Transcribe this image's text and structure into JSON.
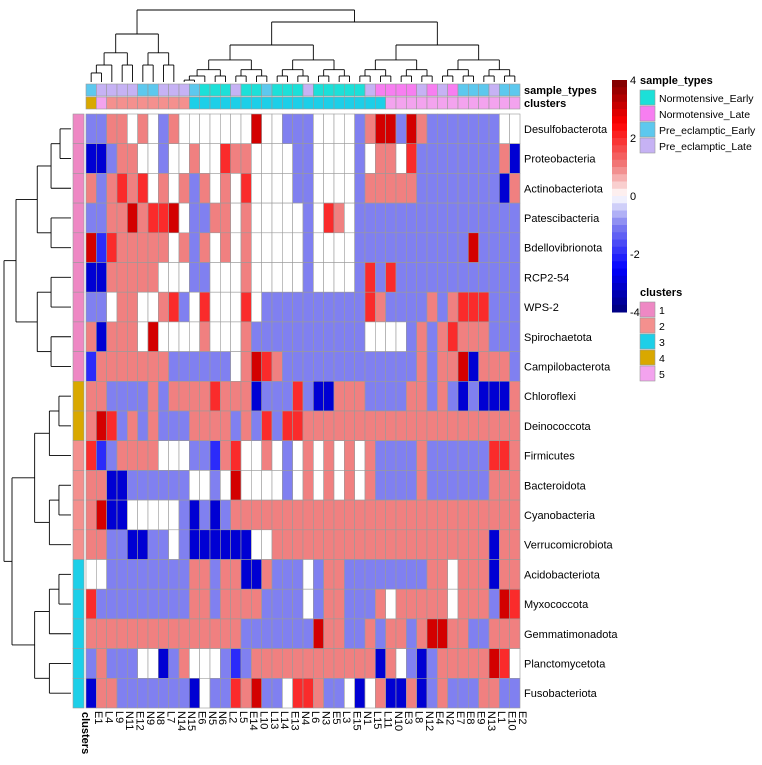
{
  "chart_data": {
    "type": "heatmap",
    "color_scale": {
      "ticks": [
        -4,
        -2,
        0,
        2,
        4
      ],
      "range": [
        -4,
        4
      ],
      "stops": [
        {
          "value": -4,
          "color": "#00007a"
        },
        {
          "value": -2.5,
          "color": "#0000ff"
        },
        {
          "value": -1,
          "color": "#8080f0"
        },
        {
          "value": 0,
          "color": "#ffffff"
        },
        {
          "value": 1,
          "color": "#f08080"
        },
        {
          "value": 2.5,
          "color": "#ff0000"
        },
        {
          "value": 4,
          "color": "#7a0000"
        }
      ]
    },
    "rows": [
      "Desulfobacterota",
      "Proteobacteria",
      "Actinobacteriota",
      "Patescibacteria",
      "Bdellovibrionota",
      "RCP2-54",
      "WPS-2",
      "Spirochaetota",
      "Campilobacterota",
      "Chloroflexi",
      "Deinococcota",
      "Firmicutes",
      "Bacteroidota",
      "Cyanobacteria",
      "Verrucomicrobiota",
      "Acidobacteriota",
      "Myxococcota",
      "Gemmatimonadota",
      "Planctomycetota",
      "Fusobacteriota"
    ],
    "row_clusters": [
      1,
      1,
      1,
      1,
      1,
      1,
      1,
      1,
      1,
      4,
      4,
      2,
      2,
      2,
      2,
      3,
      3,
      3,
      3,
      3
    ],
    "columns": [
      "E1",
      "L4",
      "L9",
      "N11",
      "E12",
      "N9",
      "N8",
      "L7",
      "N14",
      "N15",
      "E6",
      "N5",
      "N6",
      "L2",
      "L5",
      "E14",
      "L10",
      "L13",
      "L14",
      "E13",
      "N4",
      "L6",
      "N3",
      "E5",
      "L3",
      "E15",
      "N1",
      "L15",
      "L11",
      "N10",
      "E3",
      "L8",
      "N12",
      "E4",
      "N2",
      "E7",
      "E8",
      "E9",
      "N13",
      "L1",
      "E10",
      "E2"
    ],
    "column_sample_types": [
      3,
      4,
      4,
      4,
      4,
      3,
      3,
      4,
      4,
      4,
      3,
      1,
      1,
      1,
      4,
      1,
      1,
      3,
      1,
      1,
      1,
      4,
      1,
      1,
      1,
      1,
      1,
      4,
      2,
      2,
      2,
      2,
      4,
      2,
      4,
      2,
      3,
      3,
      3,
      4,
      3,
      3
    ],
    "column_clusters": [
      4,
      5,
      2,
      2,
      2,
      2,
      2,
      2,
      2,
      2,
      3,
      3,
      3,
      3,
      3,
      3,
      3,
      3,
      3,
      3,
      3,
      3,
      3,
      3,
      3,
      3,
      3,
      3,
      3,
      5,
      5,
      5,
      5,
      5,
      5,
      5,
      5,
      5,
      5,
      5,
      5,
      5
    ],
    "values": [
      [
        -1,
        -1,
        1,
        1,
        0,
        1,
        0,
        -1,
        1,
        0,
        0,
        0,
        0,
        0,
        0,
        0,
        3,
        0,
        0,
        -1,
        -1,
        -1,
        0,
        0,
        0,
        0,
        -1,
        1,
        3,
        3,
        -1,
        3,
        1,
        -1,
        -1,
        -1,
        -1,
        -1,
        -1,
        -1,
        0,
        0
      ],
      [
        -3,
        -3,
        -1,
        1,
        1,
        0,
        0,
        -1,
        0,
        0,
        1,
        0,
        0,
        2,
        1,
        1,
        0,
        0,
        0,
        0,
        -1,
        -1,
        0,
        0,
        0,
        0,
        -1,
        0,
        1,
        1,
        0,
        2,
        -1,
        -1,
        -1,
        -1,
        -1,
        -1,
        -1,
        -1,
        1,
        -3
      ],
      [
        1,
        -1,
        1,
        2,
        1,
        2,
        0,
        1,
        0,
        1,
        -1,
        1,
        0,
        1,
        0,
        2,
        0,
        0,
        0,
        0,
        -1,
        -1,
        0,
        0,
        0,
        0,
        -1,
        1,
        1,
        1,
        1,
        1,
        -1,
        -1,
        -1,
        -1,
        -1,
        -1,
        -1,
        -1,
        -3,
        1
      ],
      [
        -1,
        -1,
        1,
        1,
        3,
        1,
        2,
        2,
        3,
        0,
        -1,
        -1,
        1,
        1,
        0,
        1,
        0,
        0,
        0,
        0,
        0,
        -1,
        0,
        2,
        1,
        0,
        -1,
        -1,
        -1,
        -1,
        -1,
        -1,
        -1,
        -1,
        -1,
        -1,
        -1,
        -1,
        -1,
        -1,
        -1,
        -1
      ],
      [
        3,
        -2,
        2,
        1,
        1,
        1,
        1,
        1,
        0,
        1,
        -1,
        1,
        0,
        1,
        0,
        1,
        0,
        0,
        0,
        0,
        0,
        -1,
        0,
        0,
        0,
        0,
        -1,
        -1,
        -1,
        -1,
        -1,
        -1,
        -1,
        -1,
        -1,
        -1,
        -1,
        3,
        -1,
        -1,
        -1,
        -1
      ],
      [
        -3,
        -3,
        1,
        1,
        1,
        1,
        1,
        0,
        0,
        0,
        -1,
        -1,
        0,
        0,
        0,
        1,
        0,
        0,
        0,
        0,
        0,
        -1,
        0,
        0,
        0,
        0,
        -1,
        2,
        -1,
        2,
        -1,
        -1,
        -1,
        -1,
        -1,
        -1,
        -1,
        -1,
        -1,
        -1,
        -1,
        -1
      ],
      [
        -1,
        -1,
        0,
        1,
        1,
        0,
        0,
        1,
        2,
        -1,
        0,
        2,
        0,
        0,
        0,
        2,
        0,
        -1,
        -1,
        -1,
        -1,
        -1,
        -1,
        -1,
        -1,
        -1,
        -1,
        2,
        1,
        -1,
        -1,
        -1,
        -1,
        1,
        -1,
        1,
        2,
        2,
        2,
        -1,
        -1,
        -1
      ],
      [
        1,
        -3,
        1,
        1,
        1,
        0,
        3,
        0,
        0,
        0,
        0,
        1,
        0,
        0,
        0,
        1,
        -1,
        -1,
        -1,
        -1,
        -1,
        -1,
        -1,
        -1,
        -1,
        -1,
        -1,
        0,
        0,
        0,
        0,
        -1,
        1,
        -1,
        1,
        2,
        1,
        1,
        1,
        -1,
        -1,
        -1
      ],
      [
        -2,
        1,
        1,
        1,
        1,
        1,
        1,
        1,
        -1,
        -1,
        -1,
        -1,
        -1,
        -1,
        0,
        1,
        3,
        2,
        1,
        -1,
        -1,
        -1,
        -1,
        -1,
        -1,
        -1,
        -1,
        -1,
        -1,
        -1,
        -1,
        -1,
        1,
        -1,
        1,
        1,
        3,
        -3,
        1,
        1,
        1,
        -1
      ],
      [
        1,
        1,
        -1,
        -1,
        -1,
        -1,
        1,
        -1,
        1,
        1,
        1,
        1,
        2,
        1,
        1,
        1,
        -3,
        -1,
        -1,
        -1,
        2,
        -1,
        -3,
        -3,
        1,
        1,
        1,
        -1,
        -1,
        -1,
        -1,
        1,
        1,
        -1,
        1,
        -1,
        -3,
        -1,
        -3,
        -3,
        -3,
        1
      ],
      [
        1,
        3,
        2,
        -1,
        1,
        -1,
        1,
        -1,
        -1,
        -1,
        1,
        1,
        1,
        1,
        -1,
        1,
        -1,
        2,
        -1,
        2,
        2,
        1,
        1,
        1,
        1,
        1,
        1,
        1,
        1,
        1,
        1,
        1,
        1,
        1,
        1,
        1,
        1,
        1,
        1,
        1,
        1,
        1
      ],
      [
        2,
        -2,
        -1,
        1,
        1,
        1,
        1,
        0,
        0,
        0,
        -1,
        -1,
        -2,
        1,
        2,
        0,
        0,
        1,
        0,
        -1,
        0,
        1,
        0,
        1,
        0,
        1,
        0,
        1,
        -1,
        -1,
        -1,
        -1,
        1,
        -1,
        -1,
        -1,
        -1,
        -1,
        -1,
        2,
        2,
        1
      ],
      [
        1,
        1,
        -3,
        -3,
        -1,
        -1,
        -1,
        -1,
        -1,
        -1,
        0,
        0,
        -1,
        0,
        3,
        0,
        0,
        0,
        0,
        -1,
        0,
        1,
        0,
        1,
        0,
        1,
        0,
        1,
        -1,
        -1,
        -1,
        -1,
        1,
        -1,
        -1,
        -1,
        -1,
        -1,
        -1,
        1,
        1,
        1
      ],
      [
        1,
        3,
        -3,
        -3,
        0,
        0,
        0,
        0,
        0,
        -1,
        -3,
        -1,
        -3,
        -1,
        1,
        1,
        1,
        1,
        1,
        1,
        1,
        1,
        1,
        1,
        1,
        1,
        1,
        1,
        1,
        1,
        1,
        1,
        1,
        1,
        1,
        1,
        1,
        1,
        1,
        1,
        1,
        1
      ],
      [
        1,
        1,
        -1,
        -1,
        -3,
        -3,
        -1,
        -1,
        0,
        -1,
        -3,
        -3,
        -3,
        -3,
        -3,
        -3,
        0,
        0,
        1,
        1,
        1,
        1,
        1,
        1,
        1,
        1,
        1,
        1,
        1,
        1,
        1,
        1,
        1,
        1,
        1,
        1,
        1,
        1,
        1,
        -3,
        1,
        1
      ],
      [
        0,
        0,
        -1,
        -1,
        -1,
        -1,
        -1,
        -1,
        -1,
        -1,
        1,
        1,
        -1,
        1,
        1,
        -3,
        -3,
        1,
        -1,
        -1,
        -1,
        0,
        -1,
        1,
        1,
        -1,
        -1,
        -1,
        -1,
        -1,
        -1,
        -1,
        -1,
        1,
        1,
        0,
        1,
        1,
        1,
        -3,
        1,
        1
      ],
      [
        2,
        -1,
        -1,
        -1,
        -1,
        -1,
        -1,
        -1,
        -1,
        -1,
        1,
        1,
        -1,
        1,
        1,
        1,
        1,
        -1,
        -1,
        -1,
        -1,
        0,
        -1,
        1,
        1,
        -1,
        -1,
        -1,
        1,
        0,
        1,
        1,
        1,
        1,
        1,
        0,
        1,
        1,
        1,
        -1,
        3,
        2
      ],
      [
        1,
        1,
        1,
        1,
        1,
        1,
        1,
        1,
        1,
        1,
        1,
        1,
        1,
        1,
        1,
        -1,
        -1,
        -1,
        -1,
        -1,
        -1,
        -1,
        3,
        1,
        1,
        -1,
        -1,
        1,
        -1,
        1,
        1,
        -1,
        1,
        3,
        3,
        1,
        1,
        -1,
        -1,
        1,
        1,
        1
      ],
      [
        -1,
        1,
        -1,
        -1,
        -1,
        0,
        0,
        -3,
        -1,
        1,
        0,
        0,
        0,
        -1,
        -2,
        -1,
        1,
        1,
        1,
        1,
        1,
        1,
        1,
        1,
        1,
        1,
        1,
        1,
        -3,
        1,
        0,
        -1,
        -3,
        -1,
        1,
        1,
        1,
        1,
        1,
        3,
        2,
        0
      ],
      [
        -3,
        1,
        1,
        -1,
        -1,
        -1,
        -1,
        -1,
        -1,
        -1,
        -3,
        0,
        -1,
        -1,
        2,
        1,
        3,
        -1,
        -1,
        0,
        2,
        2,
        1,
        -1,
        -1,
        0,
        -3,
        0,
        1,
        -3,
        -3,
        1,
        -3,
        -1,
        1,
        -1,
        -1,
        -1,
        1,
        1,
        -1,
        -1
      ]
    ],
    "annotations": {
      "sample_types": {
        "title": "sample_types",
        "labels": [
          "Normotensive_Early",
          "Normotensive_Late",
          "Pre_eclamptic_Early",
          "Pre_eclamptic_Late"
        ],
        "colors": [
          "#1ce0d8",
          "#f77ef1",
          "#5dc8ee",
          "#c6b2f4"
        ]
      },
      "clusters": {
        "title": "clusters",
        "labels": [
          "1",
          "2",
          "3",
          "4",
          "5"
        ],
        "colors": [
          "#ee88c4",
          "#f4908e",
          "#1dcfe8",
          "#d9a800",
          "#f3a3ee"
        ]
      }
    },
    "annotation_row_labels": [
      "sample_types",
      "clusters"
    ],
    "row_annotation_label": "clusters"
  }
}
